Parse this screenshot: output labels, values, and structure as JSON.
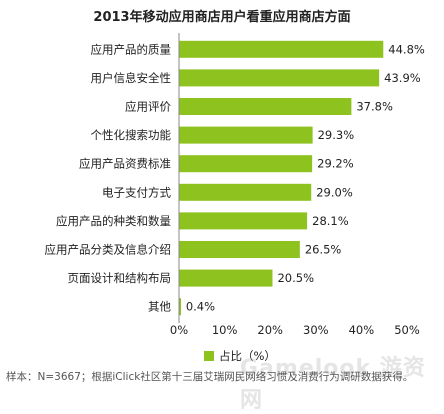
{
  "colors": {
    "bar": "#8dc21f",
    "axis": "#888888"
  },
  "chart_data": {
    "type": "bar",
    "orientation": "horizontal",
    "title": "2013年移动应用商店用户看重应用商店方面",
    "categories": [
      "应用产品的质量",
      "用户信息安全性",
      "应用评价",
      "个性化搜索功能",
      "应用产品资费标准",
      "电子支付方式",
      "应用产品的种类和数量",
      "应用产品分类及信息介绍",
      "页面设计和结构布局",
      "其他"
    ],
    "values": [
      44.8,
      43.9,
      37.8,
      29.3,
      29.2,
      29.0,
      28.1,
      26.5,
      20.5,
      0.4
    ],
    "value_labels": [
      "44.8%",
      "43.9%",
      "37.8%",
      "29.3%",
      "29.2%",
      "29.0%",
      "28.1%",
      "26.5%",
      "20.5%",
      "0.4%"
    ],
    "xlim": [
      0,
      50
    ],
    "xticks": [
      "0%",
      "10%",
      "20%",
      "30%",
      "40%",
      "50%"
    ],
    "legend": "占比（%）",
    "legend_position": "bottom"
  },
  "source": "样本：N=3667；根据iClick社区第十三届艾瑞网民网络习惯及消费行为调研数据获得。",
  "watermark": "Gamelook 游资网"
}
